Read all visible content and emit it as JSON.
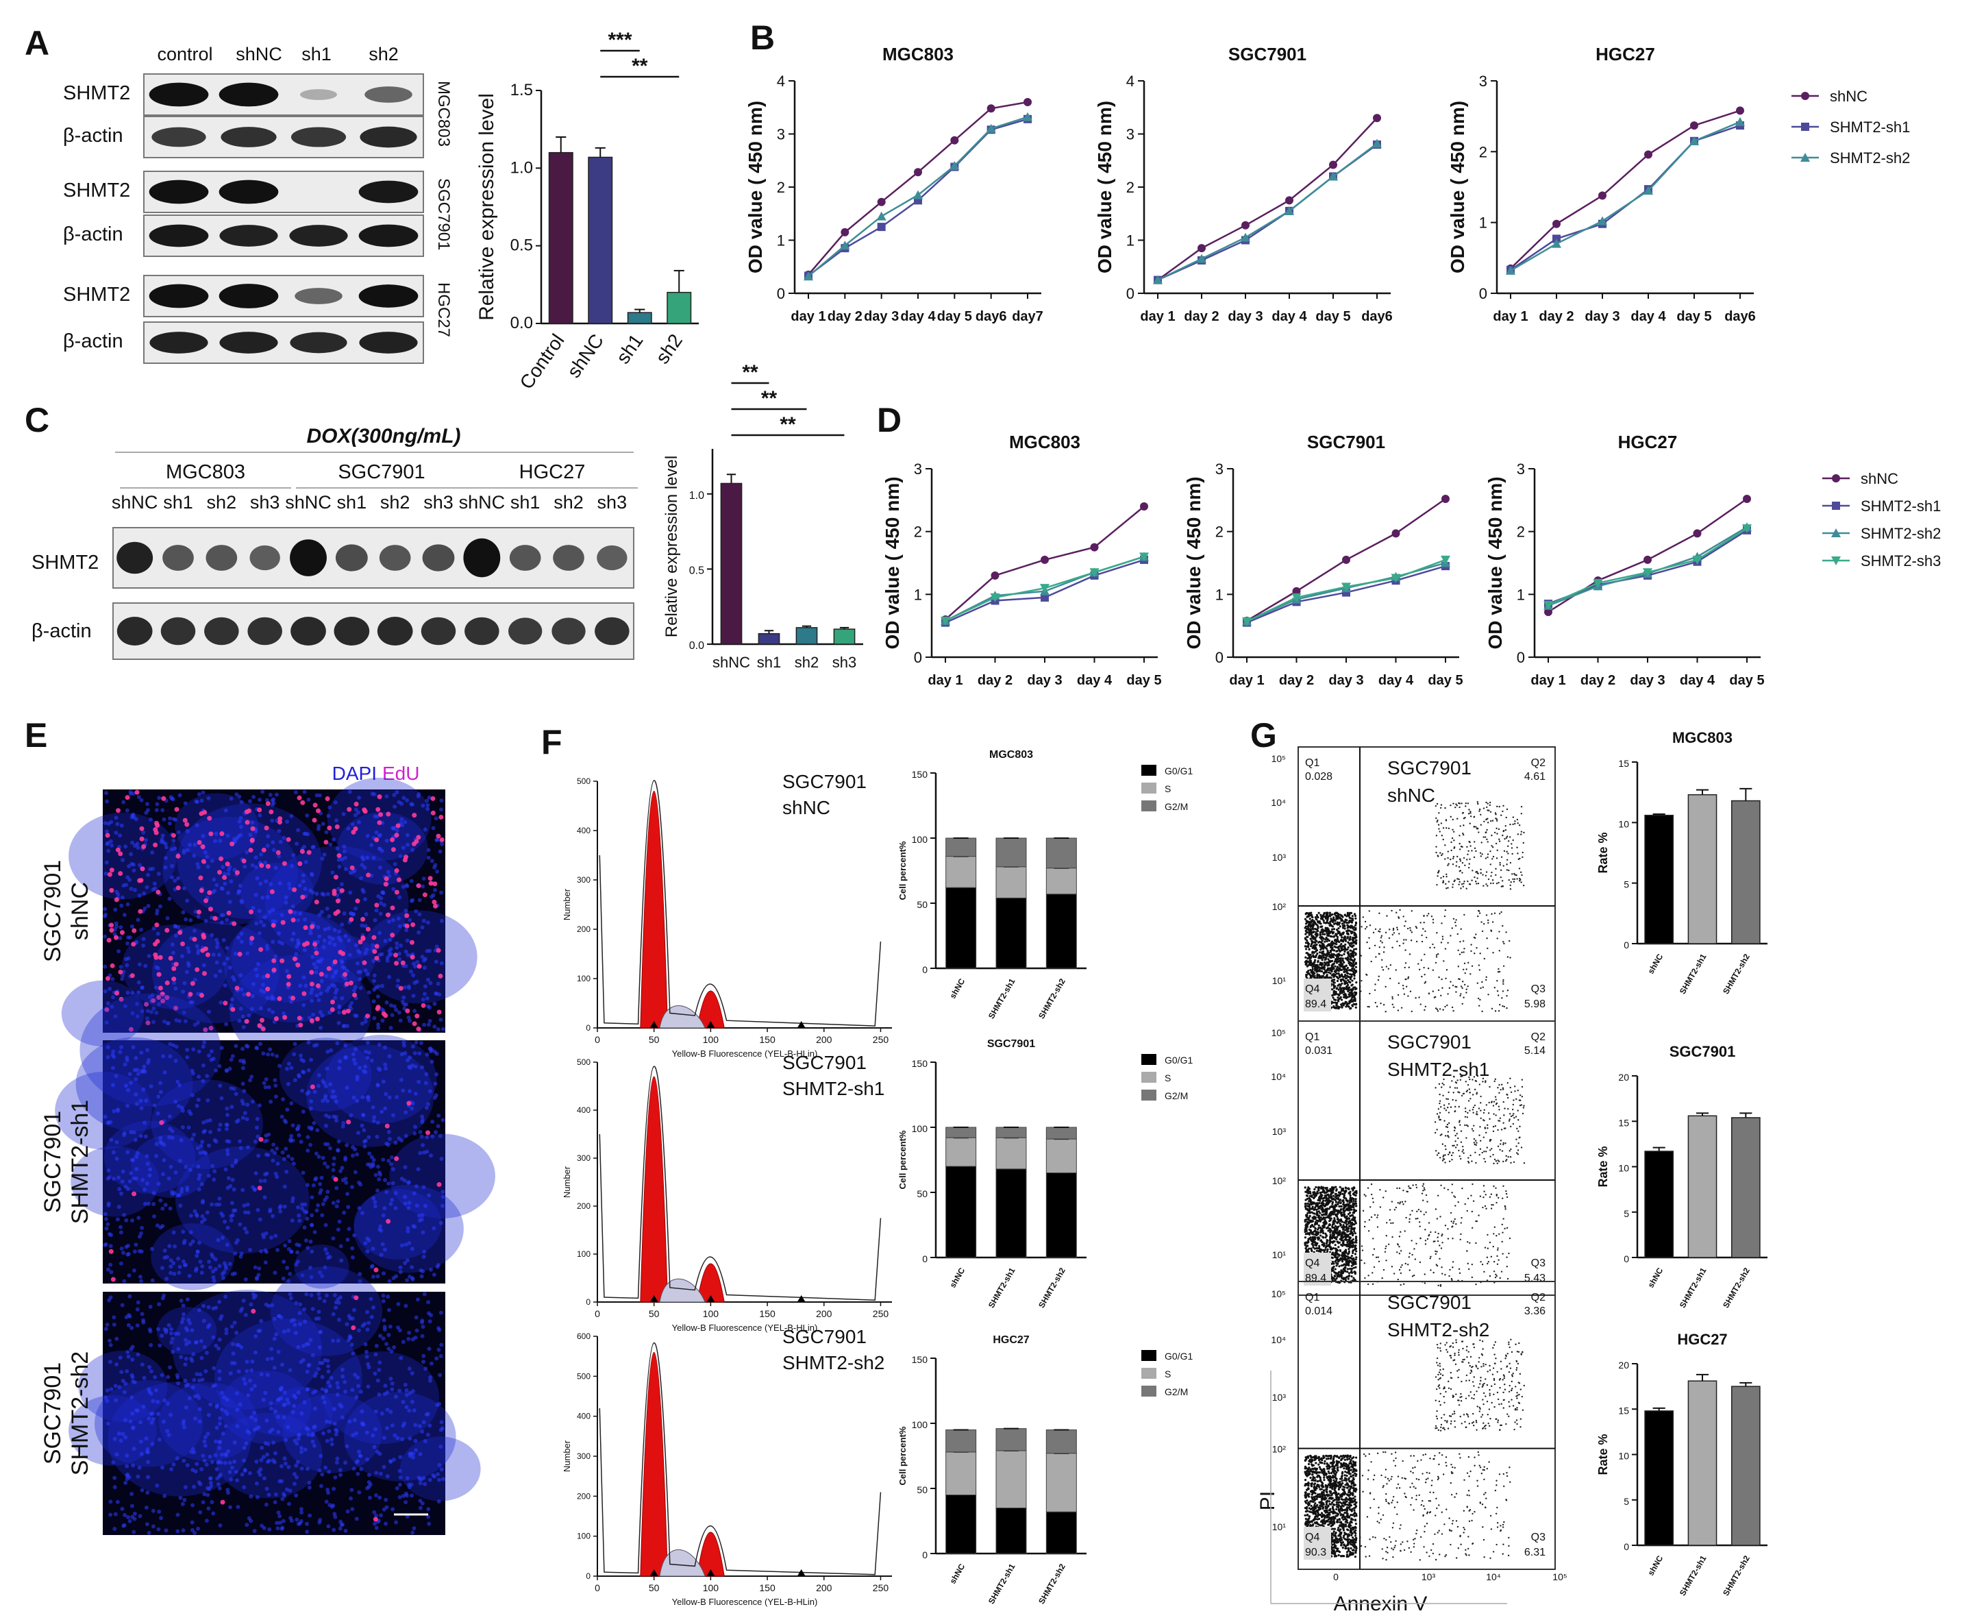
{
  "panel_letters": [
    "A",
    "B",
    "C",
    "D",
    "E",
    "F",
    "G"
  ],
  "A": {
    "lanes": [
      "control",
      "shNC",
      "sh1",
      "sh2"
    ],
    "rows": [
      {
        "label": "SHMT2",
        "cell": "MGC803",
        "bands": [
          1.0,
          1.0,
          0.05,
          0.45
        ]
      },
      {
        "label": "β-actin",
        "cell": "",
        "bands": [
          0.7,
          0.75,
          0.72,
          0.8
        ]
      },
      {
        "label": "SHMT2",
        "cell": "SGC7901",
        "bands": [
          1.0,
          1.0,
          0.0,
          0.9
        ]
      },
      {
        "label": "β-actin",
        "cell": "",
        "bands": [
          0.9,
          0.85,
          0.85,
          0.9
        ]
      },
      {
        "label": "SHMT2",
        "cell": "HGC27",
        "bands": [
          1.0,
          1.05,
          0.45,
          0.95
        ]
      },
      {
        "label": "β-actin",
        "cell": "",
        "bands": [
          0.85,
          0.85,
          0.8,
          0.85
        ]
      }
    ]
  },
  "B_legend": [
    "shNC",
    "SHMT2-sh1",
    "SHMT2-sh2"
  ],
  "D_legend": [
    "shNC",
    "SHMT2-sh1",
    "SHMT2-sh2",
    "SHMT2-sh3"
  ],
  "C": {
    "title": "DOX(300ng/mL)",
    "groups": [
      "MGC803",
      "SGC7901",
      "HGC27"
    ],
    "lanes": [
      "shNC",
      "sh1",
      "sh2",
      "sh3",
      "shNC",
      "sh1",
      "sh2",
      "sh3",
      "shNC",
      "sh1",
      "sh2",
      "sh3"
    ],
    "rows": [
      {
        "label": "SHMT2",
        "bands": [
          0.85,
          0.55,
          0.55,
          0.5,
          1.1,
          0.6,
          0.55,
          0.6,
          1.2,
          0.55,
          0.55,
          0.5
        ]
      },
      {
        "label": "β-actin",
        "bands": [
          0.8,
          0.75,
          0.75,
          0.75,
          0.8,
          0.8,
          0.8,
          0.75,
          0.75,
          0.7,
          0.7,
          0.75
        ]
      }
    ]
  },
  "E": {
    "legend_dapi": "DAPI",
    "legend_edu": "EdU",
    "rows": [
      {
        "label1": "SGC7901",
        "label2": "shNC",
        "edu": 0.55
      },
      {
        "label1": "SGC7901",
        "label2": "SHMT2-sh1",
        "edu": 0.03
      },
      {
        "label1": "SGC7901",
        "label2": "SHMT2-sh2",
        "edu": 0.01
      }
    ]
  },
  "F": {
    "hist_ylabel": "Number",
    "hist_xlabel": "Yellow-B Fluorescence (YEL-B-HLin)",
    "hist_xticks": [
      "0",
      "50",
      "100",
      "150",
      "200",
      "250"
    ],
    "hist": [
      {
        "label1": "SGC7901",
        "label2": "shNC",
        "yticks": [
          "0",
          "100",
          "200",
          "300",
          "400",
          "500"
        ],
        "ymax": 500,
        "peak1": 480,
        "peak2": 75
      },
      {
        "label1": "SGC7901",
        "label2": "SHMT2-sh1",
        "yticks": [
          "0",
          "100",
          "200",
          "300",
          "400",
          "500"
        ],
        "ymax": 500,
        "peak1": 470,
        "peak2": 80
      },
      {
        "label1": "SGC7901",
        "label2": "SHMT2-sh2",
        "yticks": [
          "0",
          "100",
          "200",
          "300",
          "400",
          "500",
          "600"
        ],
        "ymax": 600,
        "peak1": 560,
        "peak2": 110
      }
    ]
  },
  "G": {
    "flow_ylabel": "PI",
    "flow_xlabel": "Annexin V",
    "flow_axis_ticks": [
      "10¹",
      "10²",
      "10³",
      "10⁴",
      "10⁵"
    ],
    "flow": [
      {
        "label1": "SGC7901",
        "label2": "shNC",
        "Q1": "Q1",
        "Q1v": "0.028",
        "Q2": "Q2",
        "Q2v": "4.61",
        "Q3": "Q3",
        "Q3v": "5.98",
        "Q4": "Q4",
        "Q4v": "89.4"
      },
      {
        "label1": "SGC7901",
        "label2": "SHMT2-sh1",
        "Q1": "Q1",
        "Q1v": "0.031",
        "Q2": "Q2",
        "Q2v": "5.14",
        "Q3": "Q3",
        "Q3v": "5.43",
        "Q4": "Q4",
        "Q4v": "89.4"
      },
      {
        "label1": "SGC7901",
        "label2": "SHMT2-sh2",
        "Q1": "Q1",
        "Q1v": "0.014",
        "Q2": "Q2",
        "Q2v": "3.36",
        "Q3": "Q3",
        "Q3v": "6.31",
        "Q4": "Q4",
        "Q4v": "90.3"
      }
    ]
  },
  "chart_data": [
    {
      "id": "A_bar",
      "type": "bar",
      "categories": [
        "Control",
        "shNC",
        "sh1",
        "sh2"
      ],
      "values": [
        1.1,
        1.07,
        0.07,
        0.2
      ],
      "errors": [
        0.1,
        0.06,
        0.02,
        0.14
      ],
      "ylabel": "Relative expression level",
      "ylim": [
        0,
        1.5
      ],
      "yticks": [
        "0.0",
        "0.5",
        "1.0",
        "1.5"
      ],
      "colors": [
        "#4a1a45",
        "#3c3c85",
        "#2d7a8a",
        "#35a47a"
      ],
      "significance": [
        {
          "from": 1,
          "to": 2,
          "label": "***"
        },
        {
          "from": 1,
          "to": 3,
          "label": "**"
        }
      ]
    },
    {
      "id": "B1",
      "type": "line",
      "title": "MGC803",
      "ylabel": "OD value ( 450 nm)",
      "ylim": [
        0,
        4
      ],
      "yticks": [
        "0",
        "1",
        "2",
        "3",
        "4"
      ],
      "x": [
        "day 1",
        "day 2",
        "day 3",
        "day 4",
        "day 5",
        "day6",
        "day7"
      ],
      "series": [
        {
          "name": "shNC",
          "values": [
            0.35,
            1.15,
            1.72,
            2.28,
            2.88,
            3.48,
            3.6
          ]
        },
        {
          "name": "SHMT2-sh1",
          "values": [
            0.33,
            0.85,
            1.25,
            1.75,
            2.38,
            3.08,
            3.28
          ]
        },
        {
          "name": "SHMT2-sh2",
          "values": [
            0.32,
            0.9,
            1.45,
            1.85,
            2.4,
            3.1,
            3.32
          ]
        }
      ]
    },
    {
      "id": "B2",
      "type": "line",
      "title": "SGC7901",
      "ylabel": "OD value ( 450 nm)",
      "ylim": [
        0,
        4
      ],
      "yticks": [
        "0",
        "1",
        "2",
        "3",
        "4"
      ],
      "x": [
        "day 1",
        "day 2",
        "day 3",
        "day 4",
        "day 5",
        "day6"
      ],
      "series": [
        {
          "name": "shNC",
          "values": [
            0.25,
            0.85,
            1.28,
            1.75,
            2.42,
            3.3
          ]
        },
        {
          "name": "SHMT2-sh1",
          "values": [
            0.25,
            0.62,
            1.0,
            1.55,
            2.2,
            2.8
          ]
        },
        {
          "name": "SHMT2-sh2",
          "values": [
            0.25,
            0.65,
            1.05,
            1.55,
            2.2,
            2.82
          ]
        }
      ]
    },
    {
      "id": "B3",
      "type": "line",
      "title": "HGC27",
      "ylabel": "OD value ( 450 nm)",
      "ylim": [
        0,
        3
      ],
      "yticks": [
        "0",
        "1",
        "2",
        "3"
      ],
      "x": [
        "day 1",
        "day 2",
        "day 3",
        "day 4",
        "day 5",
        "day6"
      ],
      "series": [
        {
          "name": "shNC",
          "values": [
            0.35,
            0.98,
            1.38,
            1.96,
            2.37,
            2.58
          ]
        },
        {
          "name": "SHMT2-sh1",
          "values": [
            0.33,
            0.77,
            0.98,
            1.47,
            2.15,
            2.37
          ]
        },
        {
          "name": "SHMT2-sh2",
          "values": [
            0.32,
            0.7,
            1.02,
            1.45,
            2.15,
            2.42
          ]
        }
      ]
    },
    {
      "id": "C_bar",
      "type": "bar",
      "categories": [
        "shNC",
        "sh1",
        "sh2",
        "sh3"
      ],
      "values": [
        1.07,
        0.07,
        0.11,
        0.1
      ],
      "errors": [
        0.06,
        0.02,
        0.01,
        0.01
      ],
      "ylabel": "Relative expression level",
      "ylim": [
        0,
        1.3
      ],
      "yticks": [
        "0.0",
        "0.5",
        "1.0"
      ],
      "colors": [
        "#4a1a45",
        "#3c3c85",
        "#2d7a8a",
        "#35a47a"
      ],
      "significance": [
        {
          "from": 0,
          "to": 1,
          "label": "**"
        },
        {
          "from": 0,
          "to": 2,
          "label": "**"
        },
        {
          "from": 0,
          "to": 3,
          "label": "**"
        }
      ]
    },
    {
      "id": "D1",
      "type": "line",
      "title": "MGC803",
      "ylabel": "OD value ( 450 nm)",
      "ylim": [
        0,
        3
      ],
      "yticks": [
        "0",
        "1",
        "2",
        "3"
      ],
      "x": [
        "day 1",
        "day 2",
        "day 3",
        "day 4",
        "day 5"
      ],
      "series": [
        {
          "name": "shNC",
          "values": [
            0.6,
            1.3,
            1.55,
            1.75,
            2.4
          ]
        },
        {
          "name": "SHMT2-sh1",
          "values": [
            0.55,
            0.9,
            0.95,
            1.3,
            1.55
          ]
        },
        {
          "name": "SHMT2-sh2",
          "values": [
            0.58,
            0.98,
            1.05,
            1.35,
            1.6
          ]
        },
        {
          "name": "SHMT2-sh3",
          "values": [
            0.58,
            0.95,
            1.1,
            1.35,
            1.6
          ]
        }
      ]
    },
    {
      "id": "D2",
      "type": "line",
      "title": "SGC7901",
      "ylabel": "OD value ( 450 nm)",
      "ylim": [
        0,
        3
      ],
      "yticks": [
        "0",
        "1",
        "2",
        "3"
      ],
      "x": [
        "day 1",
        "day 2",
        "day 3",
        "day 4",
        "day 5"
      ],
      "series": [
        {
          "name": "shNC",
          "values": [
            0.58,
            1.05,
            1.55,
            1.97,
            2.52
          ]
        },
        {
          "name": "SHMT2-sh1",
          "values": [
            0.55,
            0.88,
            1.03,
            1.22,
            1.45
          ]
        },
        {
          "name": "SHMT2-sh2",
          "values": [
            0.57,
            0.92,
            1.1,
            1.28,
            1.5
          ]
        },
        {
          "name": "SHMT2-sh3",
          "values": [
            0.57,
            0.95,
            1.12,
            1.26,
            1.55
          ]
        }
      ]
    },
    {
      "id": "D3",
      "type": "line",
      "title": "HGC27",
      "ylabel": "OD value ( 450 nm)",
      "ylim": [
        0,
        3
      ],
      "yticks": [
        "0",
        "1",
        "2",
        "3"
      ],
      "x": [
        "day 1",
        "day 2",
        "day 3",
        "day 4",
        "day 5"
      ],
      "series": [
        {
          "name": "shNC",
          "values": [
            0.72,
            1.22,
            1.55,
            1.97,
            2.52
          ]
        },
        {
          "name": "SHMT2-sh1",
          "values": [
            0.85,
            1.15,
            1.3,
            1.52,
            2.02
          ]
        },
        {
          "name": "SHMT2-sh2",
          "values": [
            0.82,
            1.13,
            1.33,
            1.6,
            2.07
          ]
        },
        {
          "name": "SHMT2-sh3",
          "values": [
            0.83,
            1.18,
            1.35,
            1.55,
            2.05
          ]
        }
      ]
    },
    {
      "id": "F1",
      "type": "bar",
      "stacked": true,
      "title": "MGC803",
      "ylabel": "Cell percent%",
      "ylim": [
        0,
        150
      ],
      "yticks": [
        "0",
        "50",
        "100",
        "150"
      ],
      "categories": [
        "shNC",
        "SHMT2-sh1",
        "SHMT2-sh2"
      ],
      "series": [
        {
          "name": "G0/G1",
          "values": [
            62,
            54,
            57
          ]
        },
        {
          "name": "S",
          "values": [
            24,
            24,
            20
          ]
        },
        {
          "name": "G2/M",
          "values": [
            14,
            22,
            23
          ]
        }
      ]
    },
    {
      "id": "F2",
      "type": "bar",
      "stacked": true,
      "title": "SGC7901",
      "ylabel": "Cell percent%",
      "ylim": [
        0,
        150
      ],
      "yticks": [
        "0",
        "50",
        "100",
        "150"
      ],
      "categories": [
        "shNC",
        "SHMT2-sh1",
        "SHMT2-sh2"
      ],
      "series": [
        {
          "name": "G0/G1",
          "values": [
            70,
            68,
            65
          ]
        },
        {
          "name": "S",
          "values": [
            22,
            24,
            26
          ]
        },
        {
          "name": "G2/M",
          "values": [
            8,
            8,
            9
          ]
        }
      ]
    },
    {
      "id": "F3",
      "type": "bar",
      "stacked": true,
      "title": "HGC27",
      "ylabel": "Cell percent%",
      "ylim": [
        0,
        150
      ],
      "yticks": [
        "0",
        "50",
        "100",
        "150"
      ],
      "categories": [
        "shNC",
        "SHMT2-sh1",
        "SHMT2-sh2"
      ],
      "series": [
        {
          "name": "G0/G1",
          "values": [
            45,
            35,
            32
          ]
        },
        {
          "name": "S",
          "values": [
            33,
            44,
            45
          ]
        },
        {
          "name": "G2/M",
          "values": [
            17,
            17,
            18
          ]
        }
      ]
    },
    {
      "id": "G1",
      "type": "bar",
      "title": "MGC803",
      "ylabel": "Rate %",
      "ylim": [
        0,
        15
      ],
      "yticks": [
        "0",
        "5",
        "10",
        "15"
      ],
      "categories": [
        "shNC",
        "SHMT2-sh1",
        "SHMT2-sh2"
      ],
      "values": [
        10.6,
        12.3,
        11.8
      ],
      "errors": [
        0.1,
        0.4,
        1.0
      ]
    },
    {
      "id": "G2",
      "type": "bar",
      "title": "SGC7901",
      "ylabel": "Rate %",
      "ylim": [
        0,
        20
      ],
      "yticks": [
        "0",
        "5",
        "10",
        "15",
        "20"
      ],
      "categories": [
        "shNC",
        "SHMT2-sh1",
        "SHMT2-sh2"
      ],
      "values": [
        11.7,
        15.6,
        15.4
      ],
      "errors": [
        0.4,
        0.3,
        0.5
      ]
    },
    {
      "id": "G3",
      "type": "bar",
      "title": "HGC27",
      "ylabel": "Rate %",
      "ylim": [
        0,
        20
      ],
      "yticks": [
        "0",
        "5",
        "10",
        "15",
        "20"
      ],
      "categories": [
        "shNC",
        "SHMT2-sh1",
        "SHMT2-sh2"
      ],
      "values": [
        14.8,
        18.1,
        17.5
      ],
      "errors": [
        0.3,
        0.7,
        0.4
      ]
    }
  ]
}
